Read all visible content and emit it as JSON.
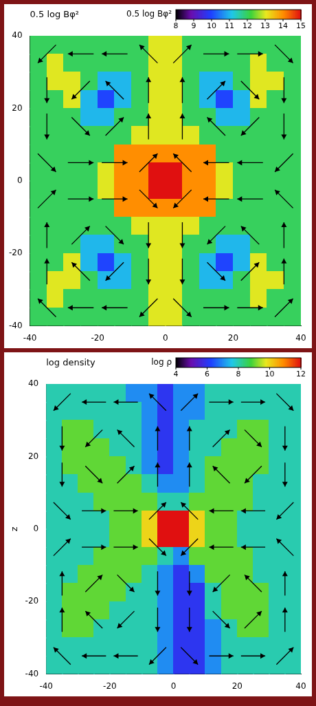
{
  "chart_data": [
    {
      "type": "heatmap",
      "title": "0.5 log Bφ²",
      "xlim": [
        -40,
        40
      ],
      "ylim": [
        -40,
        40
      ],
      "xticks": [
        -40,
        -20,
        0,
        20,
        40
      ],
      "yticks": [
        -40,
        -20,
        0,
        20,
        40
      ],
      "grid": false,
      "colorbar": {
        "label": "0.5 log Bφ²",
        "range": [
          8,
          15
        ],
        "ticks": [
          8,
          9,
          10,
          11,
          12,
          13,
          14,
          15
        ]
      },
      "cells": {
        "x": [
          -37.5,
          -32.5,
          -27.5,
          -22.5,
          -17.5,
          -12.5,
          -7.5,
          -2.5,
          2.5,
          7.5,
          12.5,
          17.5,
          22.5,
          27.5,
          32.5,
          37.5
        ],
        "y": [
          37.5,
          32.5,
          27.5,
          22.5,
          17.5,
          12.5,
          7.5,
          2.5,
          -2.5,
          -7.5,
          -12.5,
          -17.5,
          -22.5,
          -27.5,
          -32.5,
          -37.5
        ],
        "values": [
          [
            12,
            12,
            12,
            12,
            12,
            12,
            12,
            13,
            13,
            12,
            12,
            12,
            12,
            12,
            12,
            12
          ],
          [
            12,
            13,
            12,
            12,
            12,
            12,
            12,
            13,
            13,
            12,
            12,
            12,
            12,
            13,
            12,
            12
          ],
          [
            12,
            13,
            13,
            12,
            11,
            11,
            12,
            13,
            13,
            12,
            11,
            11,
            12,
            13,
            13,
            12
          ],
          [
            12,
            12,
            13,
            11,
            10,
            11,
            12,
            13,
            13,
            12,
            11,
            10,
            11,
            13,
            12,
            12
          ],
          [
            12,
            12,
            12,
            11,
            11,
            12,
            12,
            13,
            13,
            12,
            12,
            11,
            11,
            12,
            12,
            12
          ],
          [
            12,
            12,
            12,
            12,
            12,
            12,
            13,
            13,
            13,
            13,
            12,
            12,
            12,
            12,
            12,
            12
          ],
          [
            12,
            12,
            12,
            12,
            12,
            14,
            14,
            14,
            14,
            14,
            14,
            12,
            12,
            12,
            12,
            12
          ],
          [
            12,
            12,
            12,
            12,
            13,
            14,
            14,
            15,
            15,
            14,
            14,
            13,
            12,
            12,
            12,
            12
          ],
          [
            12,
            12,
            12,
            12,
            13,
            14,
            14,
            15,
            15,
            14,
            14,
            13,
            12,
            12,
            12,
            12
          ],
          [
            12,
            12,
            12,
            12,
            12,
            14,
            14,
            14,
            14,
            14,
            14,
            12,
            12,
            12,
            12,
            12
          ],
          [
            12,
            12,
            12,
            12,
            12,
            12,
            13,
            13,
            13,
            13,
            12,
            12,
            12,
            12,
            12,
            12
          ],
          [
            12,
            12,
            12,
            11,
            11,
            12,
            12,
            13,
            13,
            12,
            12,
            11,
            11,
            12,
            12,
            12
          ],
          [
            12,
            12,
            13,
            11,
            10,
            11,
            12,
            13,
            13,
            12,
            11,
            10,
            11,
            13,
            12,
            12
          ],
          [
            12,
            13,
            13,
            12,
            11,
            11,
            12,
            13,
            13,
            12,
            11,
            11,
            12,
            13,
            13,
            12
          ],
          [
            12,
            13,
            12,
            12,
            12,
            12,
            12,
            13,
            13,
            12,
            12,
            12,
            12,
            13,
            12,
            12
          ],
          [
            12,
            12,
            12,
            12,
            12,
            12,
            12,
            13,
            13,
            12,
            12,
            12,
            12,
            12,
            12,
            12
          ]
        ]
      },
      "vectors": {
        "x": [
          -35,
          -25,
          -15,
          -5,
          5,
          15,
          25,
          35
        ],
        "y": [
          35,
          25,
          15,
          5,
          -5,
          -15,
          -25,
          -35
        ],
        "u": [
          [
            -1,
            -1,
            -1,
            -1,
            1,
            1,
            1,
            1
          ],
          [
            0,
            -1,
            -1,
            0,
            0,
            1,
            1,
            0
          ],
          [
            0,
            1,
            1,
            0,
            0,
            -1,
            -1,
            0
          ],
          [
            1,
            1,
            1,
            1,
            -1,
            -1,
            -1,
            -1
          ],
          [
            1,
            1,
            1,
            1,
            -1,
            -1,
            -1,
            -1
          ],
          [
            0,
            1,
            1,
            0,
            0,
            -1,
            -1,
            0
          ],
          [
            0,
            -1,
            -1,
            0,
            0,
            1,
            1,
            0
          ],
          [
            -1,
            -1,
            -1,
            -1,
            1,
            1,
            1,
            1
          ]
        ],
        "v": [
          [
            -1,
            0,
            0,
            1,
            1,
            0,
            0,
            -1
          ],
          [
            -1,
            -1,
            1,
            1,
            1,
            1,
            -1,
            -1
          ],
          [
            -1,
            -1,
            1,
            1,
            1,
            1,
            -1,
            -1
          ],
          [
            -1,
            0,
            0,
            1,
            1,
            0,
            0,
            -1
          ],
          [
            1,
            0,
            0,
            -1,
            -1,
            0,
            0,
            1
          ],
          [
            1,
            1,
            -1,
            -1,
            -1,
            -1,
            1,
            1
          ],
          [
            1,
            1,
            -1,
            -1,
            -1,
            -1,
            1,
            1
          ],
          [
            1,
            0,
            0,
            -1,
            -1,
            0,
            0,
            1
          ]
        ]
      }
    },
    {
      "type": "heatmap",
      "title": "log density",
      "y_label": "z",
      "xlim": [
        -40,
        40
      ],
      "ylim": [
        -40,
        40
      ],
      "xticks": [
        -40,
        -20,
        0,
        20,
        40
      ],
      "yticks": [
        -40,
        -20,
        0,
        20,
        40
      ],
      "grid": false,
      "colorbar": {
        "label": "log ρ",
        "range": [
          4,
          12
        ],
        "ticks": [
          4,
          6,
          8,
          10,
          12
        ]
      },
      "cells": {
        "x": [
          -37.5,
          -32.5,
          -27.5,
          -22.5,
          -17.5,
          -12.5,
          -7.5,
          -2.5,
          2.5,
          7.5,
          12.5,
          17.5,
          22.5,
          27.5,
          32.5,
          37.5
        ],
        "y": [
          37.5,
          32.5,
          27.5,
          22.5,
          17.5,
          12.5,
          7.5,
          2.5,
          -2.5,
          -7.5,
          -12.5,
          -17.5,
          -22.5,
          -27.5,
          -32.5,
          -37.5
        ],
        "values": [
          [
            8,
            8,
            8,
            8,
            8,
            7,
            7,
            6,
            7,
            7,
            8,
            8,
            8,
            8,
            8,
            8
          ],
          [
            8,
            8,
            8,
            8,
            8,
            8,
            7,
            6,
            7,
            7,
            8,
            8,
            8,
            8,
            8,
            8
          ],
          [
            8,
            9,
            9,
            8,
            8,
            8,
            7,
            6,
            7,
            8,
            8,
            8,
            9,
            9,
            8,
            8
          ],
          [
            8,
            9,
            9,
            9,
            8,
            8,
            7,
            6,
            7,
            8,
            8,
            9,
            9,
            9,
            8,
            8
          ],
          [
            8,
            9,
            9,
            9,
            9,
            8,
            7,
            6,
            7,
            8,
            9,
            9,
            9,
            9,
            8,
            8
          ],
          [
            8,
            8,
            9,
            9,
            9,
            9,
            8,
            7,
            7,
            8,
            9,
            9,
            9,
            8,
            8,
            8
          ],
          [
            8,
            8,
            8,
            9,
            9,
            9,
            9,
            8,
            8,
            9,
            9,
            9,
            9,
            8,
            8,
            8
          ],
          [
            8,
            8,
            8,
            8,
            9,
            9,
            10,
            12,
            12,
            10,
            9,
            9,
            8,
            8,
            8,
            8
          ],
          [
            8,
            8,
            8,
            8,
            9,
            9,
            10,
            12,
            12,
            10,
            9,
            9,
            8,
            8,
            8,
            8
          ],
          [
            8,
            8,
            8,
            9,
            9,
            9,
            9,
            8,
            7,
            9,
            9,
            9,
            9,
            8,
            8,
            8
          ],
          [
            8,
            8,
            9,
            9,
            9,
            9,
            8,
            7,
            6,
            7,
            9,
            9,
            9,
            8,
            8,
            8
          ],
          [
            8,
            9,
            9,
            9,
            9,
            8,
            8,
            7,
            6,
            6,
            8,
            9,
            9,
            9,
            8,
            8
          ],
          [
            8,
            9,
            9,
            9,
            8,
            8,
            8,
            7,
            6,
            6,
            8,
            9,
            9,
            9,
            8,
            8
          ],
          [
            8,
            9,
            9,
            8,
            8,
            8,
            8,
            7,
            6,
            6,
            7,
            8,
            9,
            9,
            8,
            8
          ],
          [
            8,
            8,
            8,
            8,
            8,
            8,
            8,
            7,
            6,
            6,
            7,
            8,
            8,
            8,
            8,
            8
          ],
          [
            8,
            8,
            8,
            8,
            8,
            8,
            8,
            7,
            6,
            6,
            7,
            8,
            8,
            8,
            8,
            8
          ]
        ]
      },
      "vectors": {
        "x": [
          -35,
          -25,
          -15,
          -5,
          5,
          15,
          25,
          35
        ],
        "y": [
          35,
          25,
          15,
          5,
          -5,
          -15,
          -25,
          -35
        ],
        "u": [
          [
            -1,
            -1,
            -1,
            -1,
            1,
            1,
            1,
            1
          ],
          [
            0,
            -1,
            -1,
            0,
            0,
            1,
            1,
            0
          ],
          [
            0,
            1,
            1,
            0,
            0,
            -1,
            -1,
            0
          ],
          [
            1,
            1,
            1,
            1,
            -1,
            -1,
            -1,
            -1
          ],
          [
            1,
            1,
            1,
            1,
            -1,
            -1,
            -1,
            -1
          ],
          [
            0,
            1,
            1,
            0,
            0,
            -1,
            -1,
            0
          ],
          [
            0,
            -1,
            -1,
            0,
            0,
            1,
            1,
            0
          ],
          [
            -1,
            -1,
            -1,
            -1,
            1,
            1,
            1,
            1
          ]
        ],
        "v": [
          [
            -1,
            0,
            0,
            1,
            1,
            0,
            0,
            -1
          ],
          [
            -1,
            -1,
            1,
            1,
            1,
            1,
            -1,
            -1
          ],
          [
            -1,
            -1,
            1,
            1,
            1,
            1,
            -1,
            -1
          ],
          [
            -1,
            0,
            0,
            1,
            1,
            0,
            0,
            -1
          ],
          [
            1,
            0,
            0,
            -1,
            -1,
            0,
            0,
            1
          ],
          [
            1,
            1,
            -1,
            -1,
            -1,
            -1,
            1,
            1
          ],
          [
            1,
            1,
            -1,
            -1,
            -1,
            -1,
            1,
            1
          ],
          [
            1,
            0,
            0,
            -1,
            -1,
            0,
            0,
            1
          ]
        ]
      }
    }
  ]
}
